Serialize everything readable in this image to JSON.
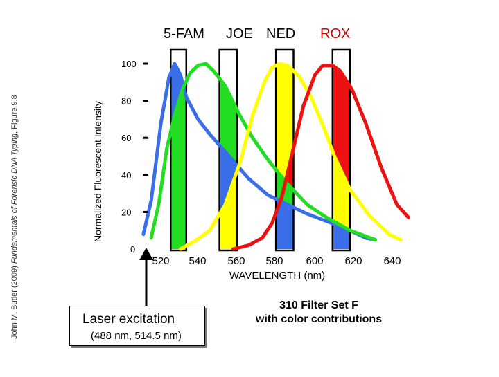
{
  "side_credit": {
    "author": "John M. Butler (2009) ",
    "book": "Fundamentals of Forensic DNA Typing",
    "figure": ", Figure 9.8"
  },
  "dye_labels": {
    "fam": "5-FAM",
    "joe": "JOE",
    "ned": "NED",
    "rox": "ROX"
  },
  "laser": {
    "title": "Laser excitation",
    "subtitle": "(488 nm, 514.5 nm)"
  },
  "filter_note": {
    "line1": "310 Filter Set F",
    "line2": "with color contributions"
  },
  "colors": {
    "fam": "#3a6ee8",
    "joe": "#22dd22",
    "ned": "#ffff00",
    "rox": "#ee1111",
    "axis": "#000000"
  },
  "chart_data": {
    "type": "line",
    "title": "",
    "xlabel": "WAVELENGTH (nm)",
    "ylabel": "Normalized Fluorescent Intensity",
    "xlim": [
      500,
      650
    ],
    "ylim": [
      0,
      100
    ],
    "xticks": [
      520,
      540,
      560,
      580,
      600,
      620,
      640
    ],
    "yticks": [
      0,
      20,
      40,
      60,
      80,
      100
    ],
    "grid": false,
    "legend": "dye names above the plot",
    "series": [
      {
        "name": "5-FAM",
        "x": [
          506,
          510,
          515,
          519,
          522,
          525,
          528,
          534,
          540,
          550,
          560,
          570,
          580,
          590,
          600,
          610,
          620,
          625
        ],
        "y": [
          8,
          26,
          68,
          92,
          100,
          94,
          82,
          70,
          62,
          50,
          38,
          29,
          24,
          19,
          15,
          11,
          6,
          5
        ]
      },
      {
        "name": "JOE",
        "x": [
          510,
          514,
          518,
          522,
          526,
          530,
          534,
          538,
          542,
          548,
          555,
          562,
          570,
          580,
          590,
          600,
          612,
          625
        ],
        "y": [
          6,
          25,
          54,
          72,
          86,
          95,
          99,
          100,
          96,
          88,
          73,
          60,
          48,
          35,
          24,
          17,
          10,
          5
        ]
      },
      {
        "name": "NED",
        "x": [
          525,
          532,
          540,
          548,
          556,
          562,
          568,
          572,
          576,
          580,
          586,
          592,
          598,
          604,
          612,
          622,
          632,
          638
        ],
        "y": [
          0,
          4,
          10,
          24,
          48,
          72,
          90,
          98,
          100,
          99,
          93,
          82,
          67,
          50,
          32,
          18,
          8,
          5
        ]
      },
      {
        "name": "ROX",
        "x": [
          552,
          560,
          567,
          572,
          577,
          582,
          588,
          594,
          598,
          603,
          607,
          613,
          620,
          628,
          636,
          642
        ],
        "y": [
          0,
          2,
          6,
          14,
          28,
          50,
          77,
          94,
          99,
          99,
          96,
          86,
          68,
          44,
          24,
          17
        ]
      }
    ],
    "filter_windows": [
      {
        "dye": "5-FAM",
        "x": [
          520,
          528
        ]
      },
      {
        "dye": "JOE",
        "x": [
          545,
          554
        ]
      },
      {
        "dye": "NED",
        "x": [
          574,
          583
        ]
      },
      {
        "dye": "ROX",
        "x": [
          603,
          612
        ]
      }
    ]
  }
}
